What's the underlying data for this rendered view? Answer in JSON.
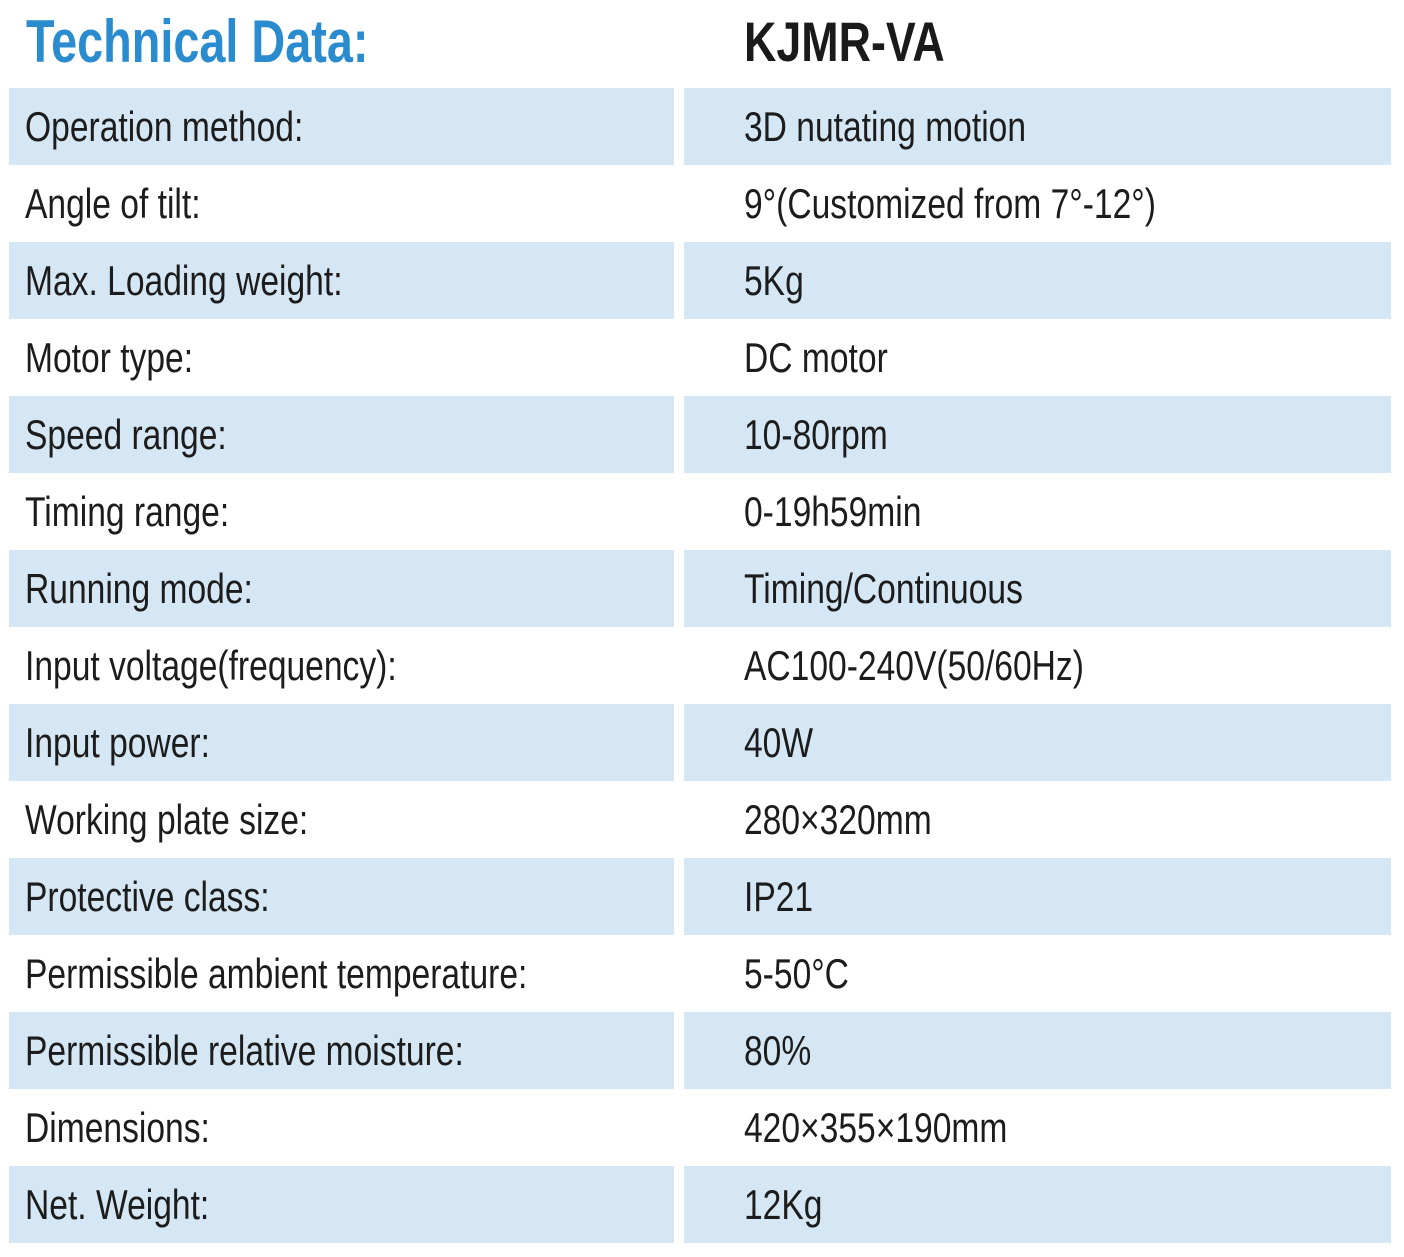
{
  "header": {
    "title": "Technical Data:",
    "model": "KJMR-VA"
  },
  "colors": {
    "title": "#2a8ccf",
    "row_shade": "#d5e7f4",
    "text": "#1c1c1c"
  },
  "specs": [
    {
      "label": "Operation method:",
      "value": "3D nutating motion"
    },
    {
      "label": "Angle of tilt:",
      "value": "9°(Customized from 7°-12°)"
    },
    {
      "label": "Max. Loading weight:",
      "value": "5Kg"
    },
    {
      "label": "Motor type:",
      "value": "DC motor"
    },
    {
      "label": "Speed range:",
      "value": "10-80rpm"
    },
    {
      "label": "Timing range:",
      "value": "0-19h59min"
    },
    {
      "label": "Running mode:",
      "value": "Timing/Continuous"
    },
    {
      "label": "Input voltage(frequency):",
      "value": "AC100-240V(50/60Hz)"
    },
    {
      "label": "Input power:",
      "value": "40W"
    },
    {
      "label": "Working plate size:",
      "value": "280×320mm"
    },
    {
      "label": "Protective class:",
      "value": "IP21"
    },
    {
      "label": "Permissible ambient temperature:",
      "value": "5-50°C"
    },
    {
      "label": "Permissible relative moisture:",
      "value": "80%"
    },
    {
      "label": "Dimensions:",
      "value": "420×355×190mm"
    },
    {
      "label": "Net. Weight:",
      "value": "12Kg"
    }
  ]
}
